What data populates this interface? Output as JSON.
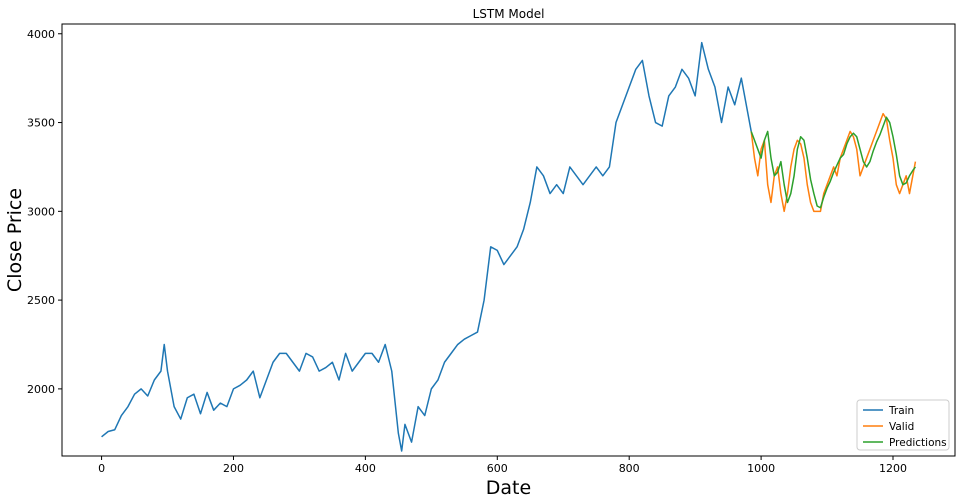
{
  "chart_data": {
    "type": "line",
    "title": "LSTM Model",
    "xlabel": "Date",
    "ylabel": "Close Price",
    "xlim": [
      -60,
      1294
    ],
    "ylim": [
      1622,
      4055
    ],
    "xticks": [
      0,
      200,
      400,
      600,
      800,
      1000,
      1200
    ],
    "yticks": [
      2000,
      2500,
      3000,
      3500,
      4000
    ],
    "grid": false,
    "legend_position": "lower right",
    "series": [
      {
        "name": "Train",
        "color": "#1f77b4",
        "x": [
          0,
          10,
          20,
          30,
          40,
          50,
          60,
          70,
          80,
          90,
          95,
          100,
          110,
          120,
          130,
          140,
          150,
          160,
          170,
          180,
          190,
          200,
          210,
          220,
          230,
          240,
          250,
          260,
          270,
          280,
          290,
          300,
          310,
          320,
          330,
          340,
          350,
          360,
          370,
          380,
          390,
          400,
          410,
          420,
          430,
          440,
          450,
          455,
          460,
          470,
          480,
          490,
          500,
          510,
          520,
          530,
          540,
          550,
          560,
          570,
          580,
          590,
          600,
          610,
          620,
          630,
          640,
          650,
          660,
          670,
          680,
          690,
          700,
          710,
          720,
          730,
          740,
          750,
          760,
          770,
          780,
          790,
          800,
          810,
          820,
          830,
          840,
          850,
          860,
          870,
          880,
          890,
          900,
          910,
          920,
          930,
          940,
          950,
          960,
          970,
          980,
          985
        ],
        "y": [
          1730,
          1760,
          1770,
          1850,
          1900,
          1970,
          2000,
          1960,
          2050,
          2100,
          2250,
          2100,
          1900,
          1830,
          1950,
          1970,
          1860,
          1980,
          1880,
          1920,
          1900,
          2000,
          2020,
          2050,
          2100,
          1950,
          2050,
          2150,
          2200,
          2200,
          2150,
          2100,
          2200,
          2180,
          2100,
          2120,
          2150,
          2050,
          2200,
          2100,
          2150,
          2200,
          2200,
          2150,
          2250,
          2100,
          1750,
          1650,
          1800,
          1700,
          1900,
          1850,
          2000,
          2050,
          2150,
          2200,
          2250,
          2280,
          2300,
          2320,
          2500,
          2800,
          2780,
          2700,
          2750,
          2800,
          2900,
          3050,
          3250,
          3200,
          3100,
          3150,
          3100,
          3250,
          3200,
          3150,
          3200,
          3250,
          3200,
          3250,
          3500,
          3600,
          3700,
          3800,
          3850,
          3650,
          3500,
          3480,
          3650,
          3700,
          3800,
          3750,
          3650,
          3950,
          3800,
          3700,
          3500,
          3700,
          3600,
          3750,
          3550,
          3450
        ]
      },
      {
        "name": "Valid",
        "color": "#ff7f0e",
        "x": [
          985,
          990,
          995,
          1000,
          1005,
          1010,
          1015,
          1020,
          1025,
          1030,
          1035,
          1040,
          1045,
          1050,
          1055,
          1060,
          1065,
          1070,
          1075,
          1080,
          1085,
          1090,
          1095,
          1100,
          1105,
          1110,
          1115,
          1120,
          1125,
          1130,
          1135,
          1140,
          1145,
          1150,
          1155,
          1160,
          1165,
          1170,
          1175,
          1180,
          1185,
          1190,
          1195,
          1200,
          1205,
          1210,
          1215,
          1220,
          1225,
          1230,
          1234
        ],
        "y": [
          3450,
          3300,
          3200,
          3350,
          3400,
          3150,
          3050,
          3200,
          3250,
          3100,
          3000,
          3100,
          3250,
          3350,
          3400,
          3380,
          3300,
          3150,
          3050,
          3000,
          3000,
          3000,
          3100,
          3150,
          3200,
          3250,
          3200,
          3300,
          3350,
          3400,
          3450,
          3420,
          3350,
          3200,
          3250,
          3300,
          3350,
          3400,
          3450,
          3500,
          3550,
          3520,
          3400,
          3300,
          3150,
          3100,
          3150,
          3200,
          3100,
          3200,
          3280
        ]
      },
      {
        "name": "Predictions",
        "color": "#2ca02c",
        "x": [
          985,
          990,
          995,
          1000,
          1005,
          1010,
          1015,
          1020,
          1025,
          1030,
          1035,
          1040,
          1045,
          1050,
          1055,
          1060,
          1065,
          1070,
          1075,
          1080,
          1085,
          1090,
          1095,
          1100,
          1105,
          1110,
          1115,
          1120,
          1125,
          1130,
          1135,
          1140,
          1145,
          1150,
          1155,
          1160,
          1165,
          1170,
          1175,
          1180,
          1185,
          1190,
          1195,
          1200,
          1205,
          1210,
          1215,
          1220,
          1225,
          1230,
          1234
        ],
        "y": [
          3450,
          3400,
          3350,
          3300,
          3400,
          3450,
          3300,
          3200,
          3220,
          3280,
          3150,
          3050,
          3100,
          3200,
          3350,
          3420,
          3400,
          3300,
          3180,
          3100,
          3030,
          3020,
          3080,
          3130,
          3170,
          3220,
          3260,
          3300,
          3320,
          3380,
          3420,
          3440,
          3420,
          3350,
          3280,
          3250,
          3280,
          3340,
          3390,
          3430,
          3480,
          3530,
          3500,
          3420,
          3320,
          3200,
          3150,
          3160,
          3200,
          3230,
          3250
        ]
      }
    ]
  }
}
